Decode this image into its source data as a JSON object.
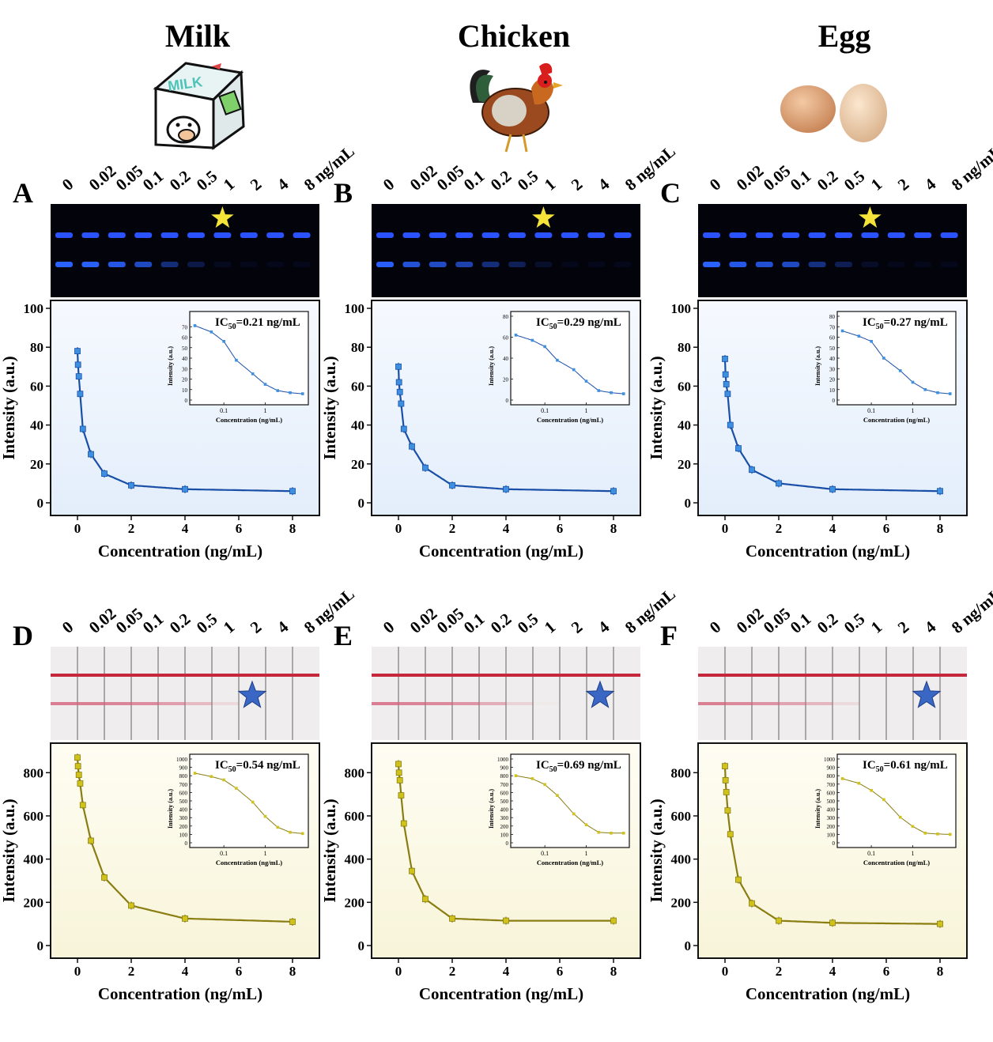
{
  "headers": [
    "Milk",
    "Chicken",
    "Egg"
  ],
  "illustration_text": "MILK",
  "lane_labels": [
    "0",
    "0.02",
    "0.05",
    "0.1",
    "0.2",
    "0.5",
    "1",
    "2",
    "4",
    "8 ng/mL"
  ],
  "axis": {
    "xlabel": "Concentration (ng/mL)",
    "ylabel": "Intensity (a.u.)",
    "inset_xlabel": "Concentration (ng/mL)",
    "inset_ylabel": "Intensity (a.u.)",
    "x_ticks": [
      "0",
      "2",
      "4",
      "6",
      "8"
    ],
    "inset_x_ticks": [
      "0.1",
      "1"
    ]
  },
  "colors": {
    "fluorescence_curve": "#1a4fa8",
    "fluorescence_points": "#3d8fe0",
    "colorimetric_curve": "#8a7d12",
    "colorimetric_points": "#cfc21a",
    "fluorescence_panel_bg": "#edf4fd",
    "colorimetric_panel_bg": "#fdfbe8",
    "star_fluorescence": "#f5e33a",
    "star_colorimetric": "#3a66c4"
  },
  "panels": [
    {
      "label": "A",
      "food": "Milk",
      "strip": "fluorescence",
      "star_lane": 6,
      "ic50_prefix": "IC",
      "ic50_sub": "50",
      "ic50_value": "=0.21 ng/mL"
    },
    {
      "label": "B",
      "food": "Chicken",
      "strip": "fluorescence",
      "star_lane": 6,
      "ic50_prefix": "IC",
      "ic50_sub": "50",
      "ic50_value": "=0.29 ng/mL"
    },
    {
      "label": "C",
      "food": "Egg",
      "strip": "fluorescence",
      "star_lane": 6,
      "ic50_prefix": "IC",
      "ic50_sub": "50",
      "ic50_value": "=0.27 ng/mL"
    },
    {
      "label": "D",
      "food": "Milk",
      "strip": "colorimetric",
      "star_lane": 7,
      "ic50_prefix": "IC",
      "ic50_sub": "50",
      "ic50_value": "=0.54 ng/mL"
    },
    {
      "label": "E",
      "food": "Chicken",
      "strip": "colorimetric",
      "star_lane": 8,
      "ic50_prefix": "IC",
      "ic50_sub": "50",
      "ic50_value": "=0.69 ng/mL"
    },
    {
      "label": "F",
      "food": "Egg",
      "strip": "colorimetric",
      "star_lane": 8,
      "ic50_prefix": "IC",
      "ic50_sub": "50",
      "ic50_value": "=0.61 ng/mL"
    }
  ],
  "chart_data": [
    {
      "panel": "A",
      "type": "scatter",
      "fit": "line",
      "x": [
        0,
        0.02,
        0.05,
        0.1,
        0.2,
        0.5,
        1,
        2,
        4,
        8
      ],
      "y": [
        78,
        71,
        65,
        56,
        38,
        25,
        15,
        9,
        7,
        6
      ],
      "xlim": [
        -1,
        9
      ],
      "ylim": [
        0,
        100
      ],
      "y_ticks": [
        0,
        20,
        40,
        60,
        80,
        100
      ],
      "inset": {
        "x": [
          0.02,
          0.05,
          0.1,
          0.2,
          0.5,
          1,
          2,
          4,
          8
        ],
        "y": [
          71,
          65,
          56,
          38,
          25,
          15,
          9,
          7,
          6
        ],
        "xscale": "log",
        "ylim": [
          0,
          80
        ],
        "y_ticks": [
          0,
          10,
          20,
          30,
          40,
          50,
          60,
          70
        ]
      }
    },
    {
      "panel": "B",
      "type": "scatter",
      "fit": "line",
      "x": [
        0,
        0.02,
        0.05,
        0.1,
        0.2,
        0.5,
        1,
        2,
        4,
        8
      ],
      "y": [
        70,
        62,
        57,
        51,
        38,
        29,
        18,
        9,
        7,
        6
      ],
      "xlim": [
        -1,
        9
      ],
      "ylim": [
        0,
        100
      ],
      "y_ticks": [
        0,
        20,
        40,
        60,
        80,
        100
      ],
      "inset": {
        "x": [
          0.02,
          0.05,
          0.1,
          0.2,
          0.5,
          1,
          2,
          4,
          8
        ],
        "y": [
          62,
          57,
          51,
          38,
          29,
          18,
          9,
          7,
          6
        ],
        "xscale": "log",
        "ylim": [
          0,
          80
        ],
        "y_ticks": [
          0,
          20,
          40,
          60,
          80
        ]
      }
    },
    {
      "panel": "C",
      "type": "scatter",
      "fit": "line",
      "x": [
        0,
        0.02,
        0.05,
        0.1,
        0.2,
        0.5,
        1,
        2,
        4,
        8
      ],
      "y": [
        74,
        66,
        61,
        56,
        40,
        28,
        17,
        10,
        7,
        6
      ],
      "xlim": [
        -1,
        9
      ],
      "ylim": [
        0,
        100
      ],
      "y_ticks": [
        0,
        20,
        40,
        60,
        80,
        100
      ],
      "inset": {
        "x": [
          0.02,
          0.05,
          0.1,
          0.2,
          0.5,
          1,
          2,
          4,
          8
        ],
        "y": [
          66,
          61,
          56,
          40,
          28,
          17,
          10,
          7,
          6
        ],
        "xscale": "log",
        "ylim": [
          0,
          80
        ],
        "y_ticks": [
          0,
          10,
          20,
          30,
          40,
          50,
          60,
          70,
          80
        ]
      }
    },
    {
      "panel": "D",
      "type": "scatter",
      "fit": "line",
      "x": [
        0,
        0.02,
        0.05,
        0.1,
        0.2,
        0.5,
        1,
        2,
        4,
        8
      ],
      "y": [
        870,
        830,
        790,
        750,
        650,
        485,
        315,
        185,
        125,
        110
      ],
      "xlim": [
        -1,
        9
      ],
      "ylim": [
        0,
        900
      ],
      "y_ticks": [
        0,
        200,
        400,
        600,
        800
      ],
      "inset": {
        "x": [
          0.02,
          0.05,
          0.1,
          0.2,
          0.5,
          1,
          2,
          4,
          8
        ],
        "y": [
          830,
          790,
          750,
          650,
          485,
          315,
          185,
          125,
          110
        ],
        "xscale": "log",
        "ylim": [
          0,
          1000
        ],
        "y_ticks": [
          0,
          100,
          200,
          300,
          400,
          500,
          600,
          700,
          800,
          900,
          1000
        ]
      }
    },
    {
      "panel": "E",
      "type": "scatter",
      "fit": "line",
      "x": [
        0,
        0.02,
        0.05,
        0.1,
        0.2,
        0.5,
        1,
        2,
        4,
        8
      ],
      "y": [
        840,
        800,
        765,
        695,
        565,
        345,
        215,
        125,
        115,
        115
      ],
      "xlim": [
        -1,
        9
      ],
      "ylim": [
        0,
        900
      ],
      "y_ticks": [
        0,
        200,
        400,
        600,
        800
      ],
      "inset": {
        "x": [
          0.02,
          0.05,
          0.1,
          0.2,
          0.5,
          1,
          2,
          4,
          8
        ],
        "y": [
          800,
          765,
          695,
          565,
          345,
          215,
          125,
          115,
          115
        ],
        "xscale": "log",
        "ylim": [
          0,
          1000
        ],
        "y_ticks": [
          0,
          100,
          200,
          300,
          400,
          500,
          600,
          700,
          800,
          900,
          1000
        ]
      }
    },
    {
      "panel": "F",
      "type": "scatter",
      "fit": "line",
      "x": [
        0,
        0.02,
        0.05,
        0.1,
        0.2,
        0.5,
        1,
        2,
        4,
        8
      ],
      "y": [
        830,
        765,
        710,
        625,
        515,
        305,
        195,
        115,
        105,
        100
      ],
      "xlim": [
        -1,
        9
      ],
      "ylim": [
        0,
        900
      ],
      "y_ticks": [
        0,
        200,
        400,
        600,
        800
      ],
      "inset": {
        "x": [
          0.02,
          0.05,
          0.1,
          0.2,
          0.5,
          1,
          2,
          4,
          8
        ],
        "y": [
          765,
          710,
          625,
          515,
          305,
          195,
          115,
          105,
          100
        ],
        "xscale": "log",
        "ylim": [
          0,
          1000
        ],
        "y_ticks": [
          0,
          100,
          200,
          300,
          400,
          500,
          600,
          700,
          800,
          900,
          1000
        ]
      }
    }
  ]
}
